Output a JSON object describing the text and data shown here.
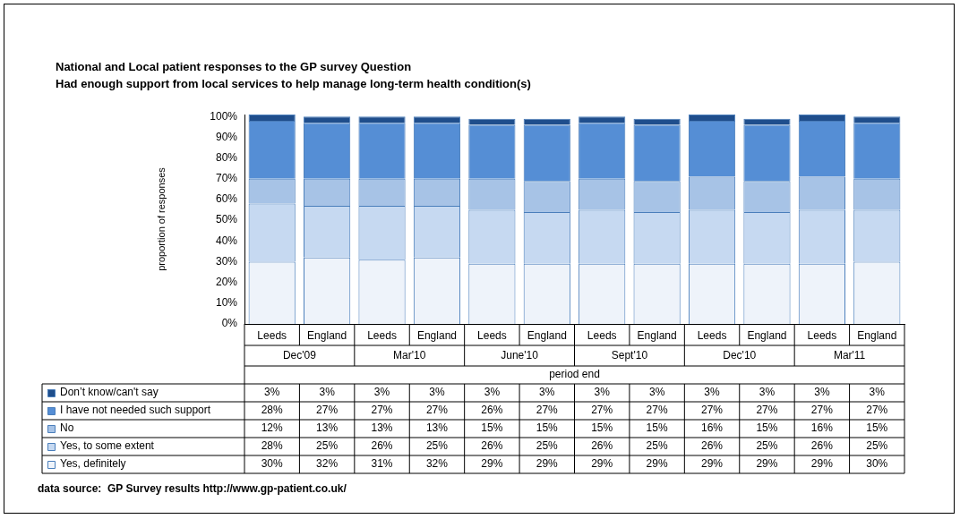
{
  "chart_data": {
    "type": "bar",
    "stacked": true,
    "title": "National and Local patient responses to the GP survey Question",
    "subtitle": "Had enough support from local services to help manage long-term health condition(s)",
    "ylabel": "proportion of responses",
    "xlabel": "period end",
    "categories": [
      "Leeds",
      "England",
      "Leeds",
      "England",
      "Leeds",
      "England",
      "Leeds",
      "England",
      "Leeds",
      "England",
      "Leeds",
      "England"
    ],
    "series": [
      {
        "name": "Yes, definitely",
        "color": "#eef3fa",
        "values": [
          30,
          32,
          31,
          32,
          29,
          29,
          29,
          29,
          29,
          29,
          29,
          30
        ],
        "value_labels": [
          "30%",
          "32%",
          "31%",
          "32%",
          "29%",
          "29%",
          "29%",
          "29%",
          "29%",
          "29%",
          "29%",
          "30%"
        ]
      },
      {
        "name": "Yes, to some extent",
        "color": "#c6d9f1",
        "values": [
          28,
          25,
          26,
          25,
          26,
          25,
          26,
          25,
          26,
          25,
          26,
          25
        ],
        "value_labels": [
          "28%",
          "25%",
          "26%",
          "25%",
          "26%",
          "25%",
          "26%",
          "25%",
          "26%",
          "25%",
          "26%",
          "25%"
        ]
      },
      {
        "name": "No",
        "color": "#a7c3e6",
        "values": [
          12,
          13,
          13,
          13,
          15,
          15,
          15,
          15,
          16,
          15,
          16,
          15
        ],
        "value_labels": [
          "12%",
          "13%",
          "13%",
          "13%",
          "15%",
          "15%",
          "15%",
          "15%",
          "16%",
          "15%",
          "16%",
          "15%"
        ]
      },
      {
        "name": "I have not needed such support",
        "color": "#558ed5",
        "values": [
          28,
          27,
          27,
          27,
          26,
          27,
          27,
          27,
          27,
          27,
          27,
          27
        ],
        "value_labels": [
          "28%",
          "27%",
          "27%",
          "27%",
          "26%",
          "27%",
          "27%",
          "27%",
          "27%",
          "27%",
          "27%",
          "27%"
        ]
      },
      {
        "name": "Don’t know/can't say",
        "color": "#1f4e8c",
        "values": [
          3,
          3,
          3,
          3,
          3,
          3,
          3,
          3,
          3,
          3,
          3,
          3
        ],
        "value_labels": [
          "3%",
          "3%",
          "3%",
          "3%",
          "3%",
          "3%",
          "3%",
          "3%",
          "3%",
          "3%",
          "3%",
          "3%"
        ]
      }
    ],
    "ylim": [
      0,
      101
    ],
    "yticks": [
      {
        "value": 0,
        "label": "0%"
      },
      {
        "value": 10,
        "label": "10%"
      },
      {
        "value": 20,
        "label": "20%"
      },
      {
        "value": 30,
        "label": "30%"
      },
      {
        "value": 40,
        "label": "40%"
      },
      {
        "value": 50,
        "label": "50%"
      },
      {
        "value": 60,
        "label": "60%"
      },
      {
        "value": 70,
        "label": "70%"
      },
      {
        "value": 80,
        "label": "80%"
      },
      {
        "value": 90,
        "label": "90%"
      },
      {
        "value": 100,
        "label": "100%"
      }
    ],
    "legend": "bottom",
    "annotations": [
      "Dec'09",
      "Mar'10",
      "June'10",
      "Sept'10",
      "Dec'10",
      "Mar'11",
      "data source:  GP Survey results http://www.gp-patient.co.uk/"
    ]
  }
}
